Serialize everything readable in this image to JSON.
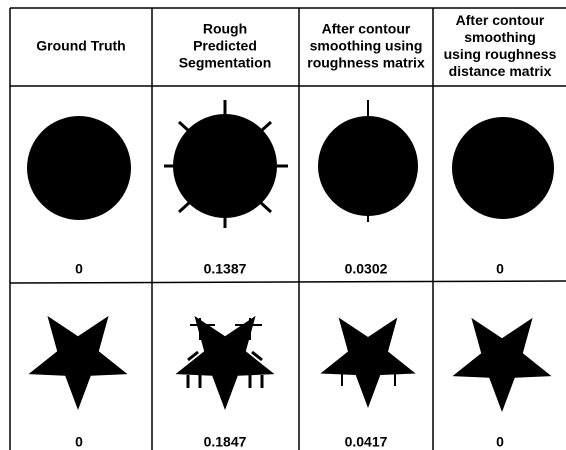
{
  "table": {
    "headers": [
      [
        "Ground Truth"
      ],
      [
        "Rough",
        "Predicted",
        "Segmentation"
      ],
      [
        "After contour",
        "smoothing using",
        "roughness matrix"
      ],
      [
        "After contour",
        "smoothing",
        "using roughness",
        "distance matrix"
      ]
    ],
    "rows": [
      [
        "0",
        "0.1387",
        "0.0302",
        "0"
      ],
      [
        "0",
        "0.1847",
        "0.0417",
        "0"
      ]
    ]
  }
}
